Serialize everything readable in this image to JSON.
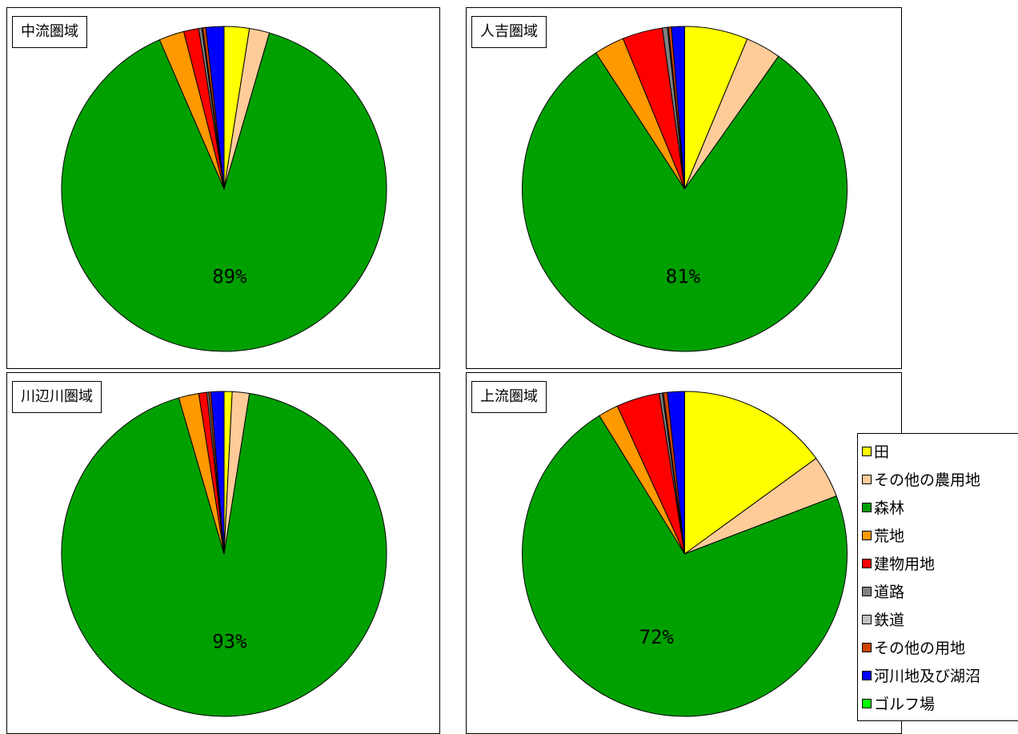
{
  "chart_data": [
    {
      "type": "pie",
      "title": "中流圏域",
      "labels": [
        "田",
        "その他の農用地",
        "森林",
        "荒地",
        "建物用地",
        "道路",
        "鉄道",
        "その他の用地",
        "河川地及び湖沼",
        "ゴルフ場"
      ],
      "values": [
        2.5,
        2.0,
        89.0,
        2.5,
        1.5,
        0.3,
        0.1,
        0.3,
        1.8,
        0.0
      ],
      "data_labels": [
        "",
        "",
        "89%",
        "",
        "",
        "",
        "",
        "",
        "",
        ""
      ]
    },
    {
      "type": "pie",
      "title": "人吉圏域",
      "labels": [
        "田",
        "その他の農用地",
        "森林",
        "荒地",
        "建物用地",
        "道路",
        "鉄道",
        "その他の用地",
        "河川地及び湖沼",
        "ゴルフ場"
      ],
      "values": [
        6.3,
        3.5,
        81.0,
        3.0,
        4.0,
        0.5,
        0.1,
        0.3,
        1.3,
        0.0
      ],
      "data_labels": [
        "",
        "",
        "81%",
        "",
        "",
        "",
        "",
        "",
        "",
        ""
      ]
    },
    {
      "type": "pie",
      "title": "川辺川圏域",
      "labels": [
        "田",
        "その他の農用地",
        "森林",
        "荒地",
        "建物用地",
        "道路",
        "鉄道",
        "その他の用地",
        "河川地及び湖沼",
        "ゴルフ場"
      ],
      "values": [
        0.8,
        1.7,
        93.0,
        2.0,
        0.8,
        0.2,
        0.0,
        0.2,
        1.3,
        0.0
      ],
      "data_labels": [
        "",
        "",
        "93%",
        "",
        "",
        "",
        "",
        "",
        "",
        ""
      ]
    },
    {
      "type": "pie",
      "title": "上流圏域",
      "labels": [
        "田",
        "その他の農用地",
        "森林",
        "荒地",
        "建物用地",
        "道路",
        "鉄道",
        "その他の用地",
        "河川地及び湖沼",
        "ゴルフ場"
      ],
      "values": [
        15.0,
        4.2,
        72.0,
        2.0,
        4.3,
        0.3,
        0.1,
        0.4,
        1.7,
        0.0
      ],
      "data_labels": [
        "",
        "",
        "72%",
        "",
        "",
        "",
        "",
        "",
        "",
        ""
      ]
    }
  ],
  "legend": {
    "placement": "right",
    "items": [
      {
        "label": "田",
        "color": "#ffff00"
      },
      {
        "label": "その他の農用地",
        "color": "#ffcc99"
      },
      {
        "label": "森林",
        "color": "#00a000"
      },
      {
        "label": "荒地",
        "color": "#ff9900"
      },
      {
        "label": "建物用地",
        "color": "#ff0000"
      },
      {
        "label": "道路",
        "color": "#808080"
      },
      {
        "label": "鉄道",
        "color": "#c0c0c0"
      },
      {
        "label": "その他の用地",
        "color": "#cc4400"
      },
      {
        "label": "河川地及び湖沼",
        "color": "#0000ff"
      },
      {
        "label": "ゴルフ場",
        "color": "#00ff00"
      }
    ]
  }
}
